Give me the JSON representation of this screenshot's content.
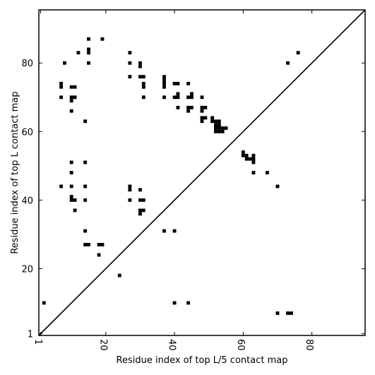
{
  "chart_data": {
    "type": "scatter",
    "title": "",
    "xlabel": "Residue index of top L/5 contact map",
    "ylabel": "Residue index of top L contact map",
    "xlim": [
      0.5,
      95.5
    ],
    "ylim": [
      0.5,
      95.5
    ],
    "grid": false,
    "x_ticks": [
      1,
      20,
      40,
      60,
      80
    ],
    "y_ticks": [
      1,
      20,
      40,
      60,
      80
    ],
    "x_tick_labels": [
      "1",
      "20",
      "40",
      "60",
      "80"
    ],
    "y_tick_labels": [
      "1",
      "20",
      "40",
      "60",
      "80"
    ],
    "diagonal": true,
    "marker_color": "#000000",
    "upper_points": [
      [
        15,
        87
      ],
      [
        19,
        87
      ],
      [
        15,
        84
      ],
      [
        15,
        83
      ],
      [
        12,
        83
      ],
      [
        27,
        83
      ],
      [
        76,
        83
      ],
      [
        8,
        80
      ],
      [
        15,
        80
      ],
      [
        27,
        80
      ],
      [
        30,
        80
      ],
      [
        30,
        79
      ],
      [
        73,
        80
      ],
      [
        27,
        76
      ],
      [
        30,
        76
      ],
      [
        31,
        76
      ],
      [
        37,
        76
      ],
      [
        37,
        75
      ],
      [
        37,
        74
      ],
      [
        37,
        73
      ],
      [
        31,
        74
      ],
      [
        31,
        73
      ],
      [
        7,
        74
      ],
      [
        7,
        73
      ],
      [
        10,
        73
      ],
      [
        11,
        73
      ],
      [
        40,
        74
      ],
      [
        41,
        74
      ],
      [
        44,
        74
      ],
      [
        7,
        70
      ],
      [
        10,
        70
      ],
      [
        11,
        70
      ],
      [
        10,
        69
      ],
      [
        31,
        70
      ],
      [
        37,
        70
      ],
      [
        40,
        70
      ],
      [
        41,
        71
      ],
      [
        41,
        70
      ],
      [
        44,
        70
      ],
      [
        45,
        71
      ],
      [
        45,
        70
      ],
      [
        48,
        70
      ],
      [
        10,
        66
      ],
      [
        41,
        67
      ],
      [
        44,
        67
      ],
      [
        44,
        66
      ],
      [
        45,
        67
      ],
      [
        48,
        67
      ],
      [
        48,
        66
      ],
      [
        49,
        67
      ],
      [
        48,
        64
      ],
      [
        48,
        63
      ],
      [
        49,
        64
      ],
      [
        51,
        64
      ],
      [
        51,
        63
      ],
      [
        52,
        63
      ],
      [
        53,
        63
      ],
      [
        52,
        62
      ],
      [
        53,
        62
      ],
      [
        52,
        61
      ],
      [
        53,
        61
      ],
      [
        54,
        61
      ],
      [
        55,
        61
      ],
      [
        52,
        60
      ],
      [
        53,
        60
      ],
      [
        54,
        60
      ],
      [
        14,
        63
      ],
      [
        60,
        54
      ],
      [
        60,
        53
      ],
      [
        61,
        53
      ],
      [
        61,
        52
      ],
      [
        62,
        52
      ],
      [
        63,
        53
      ],
      [
        63,
        52
      ],
      [
        63,
        51
      ],
      [
        10,
        51
      ],
      [
        14,
        51
      ],
      [
        10,
        48
      ],
      [
        63,
        48
      ],
      [
        67,
        48
      ],
      [
        7,
        44
      ],
      [
        10,
        44
      ],
      [
        14,
        44
      ],
      [
        27,
        44
      ],
      [
        27,
        43
      ],
      [
        30,
        43
      ],
      [
        70,
        44
      ],
      [
        10,
        41
      ],
      [
        10,
        40
      ],
      [
        11,
        40
      ],
      [
        14,
        40
      ],
      [
        27,
        40
      ],
      [
        30,
        40
      ],
      [
        31,
        40
      ],
      [
        11,
        37
      ],
      [
        30,
        37
      ],
      [
        31,
        37
      ],
      [
        30,
        36
      ],
      [
        14,
        31
      ],
      [
        37,
        31
      ],
      [
        40,
        31
      ],
      [
        14,
        27
      ],
      [
        15,
        27
      ],
      [
        18,
        27
      ],
      [
        19,
        27
      ],
      [
        18,
        24
      ]
    ],
    "lower_points": [
      [
        24,
        18
      ],
      [
        2,
        10
      ],
      [
        40,
        10
      ],
      [
        44,
        10
      ],
      [
        70,
        7
      ],
      [
        73,
        7
      ],
      [
        74,
        7
      ]
    ]
  }
}
